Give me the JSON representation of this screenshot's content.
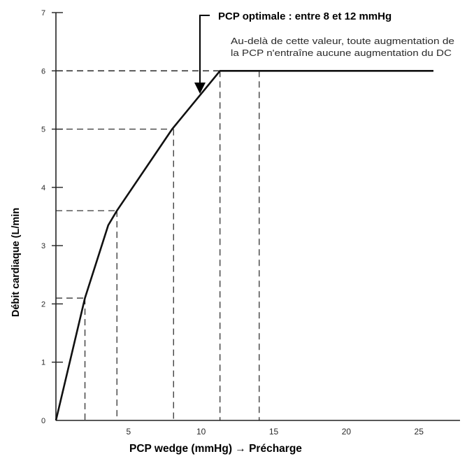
{
  "chart_data": {
    "type": "line",
    "title": "",
    "xlabel": "PCP wedge (mmHg) → Précharge",
    "ylabel": "Débit cardiaque (L/min",
    "xlim": [
      0,
      26
    ],
    "ylim": [
      0,
      7
    ],
    "x_ticks": [
      5,
      10,
      15,
      20,
      25
    ],
    "y_ticks": [
      0,
      1,
      2,
      3,
      4,
      5,
      6,
      7
    ],
    "grid": false,
    "series": [
      {
        "x": [
          0,
          2,
          3.6,
          4.2,
          8,
          11.3,
          26
        ],
        "y": [
          0,
          2.1,
          3.35,
          3.6,
          5.0,
          6.0,
          6.0
        ]
      }
    ],
    "reference_points": [
      {
        "x": 2,
        "y": 2.1
      },
      {
        "x": 4.2,
        "y": 3.6
      },
      {
        "x": 8.1,
        "y": 5.0
      },
      {
        "x": 11.3,
        "y": 6.0
      },
      {
        "x": 14,
        "y": 6.0
      }
    ],
    "annotations": {
      "optimal": "PCP optimale : entre 8 et 12 mmHg",
      "beyond_line1": "Au-delà de cette valeur, toute augmentation de",
      "beyond_line2": "la PCP n'entraîne aucune augmentation du DC"
    },
    "colors": {
      "line": "#111111",
      "axis": "#222222"
    }
  }
}
